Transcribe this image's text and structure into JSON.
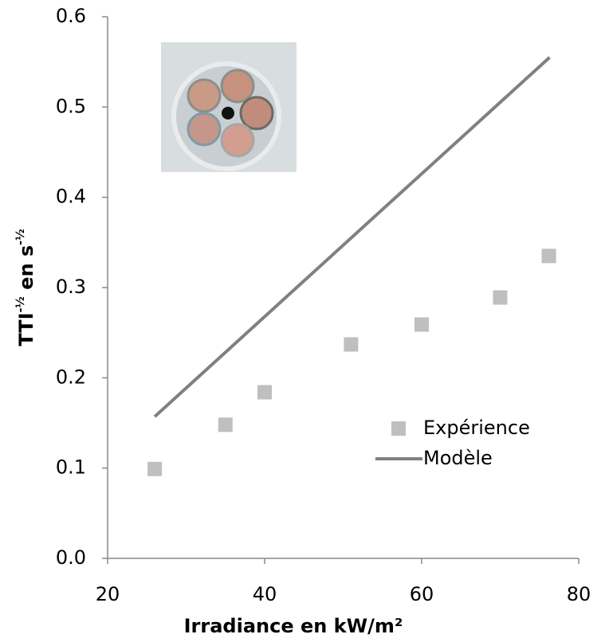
{
  "chart_data": {
    "type": "scatter",
    "xlabel": "Irradiance en kW/m²",
    "ylabel": [
      "TTI",
      "-½",
      " en s",
      "-½"
    ],
    "xlim": [
      20,
      80
    ],
    "xticks": [
      20,
      40,
      60,
      80
    ],
    "ylim": [
      0,
      0.6
    ],
    "yticks": [
      {
        "value": 0,
        "label": "0.0"
      },
      0.1,
      0.2,
      0.3,
      0.4,
      0.5,
      0.6
    ],
    "series": [
      {
        "name": "Expérience",
        "color": "#bfbfbf",
        "kind": "scatter",
        "x": [
          26,
          35,
          40,
          51,
          60,
          70,
          76.2
        ],
        "values": [
          0.099,
          0.148,
          0.184,
          0.237,
          0.259,
          0.289,
          0.335
        ]
      },
      {
        "name": "Modèle",
        "color": "#808080",
        "kind": "line",
        "x": [
          26,
          76.3
        ],
        "values": [
          0.157,
          0.555
        ]
      }
    ]
  }
}
